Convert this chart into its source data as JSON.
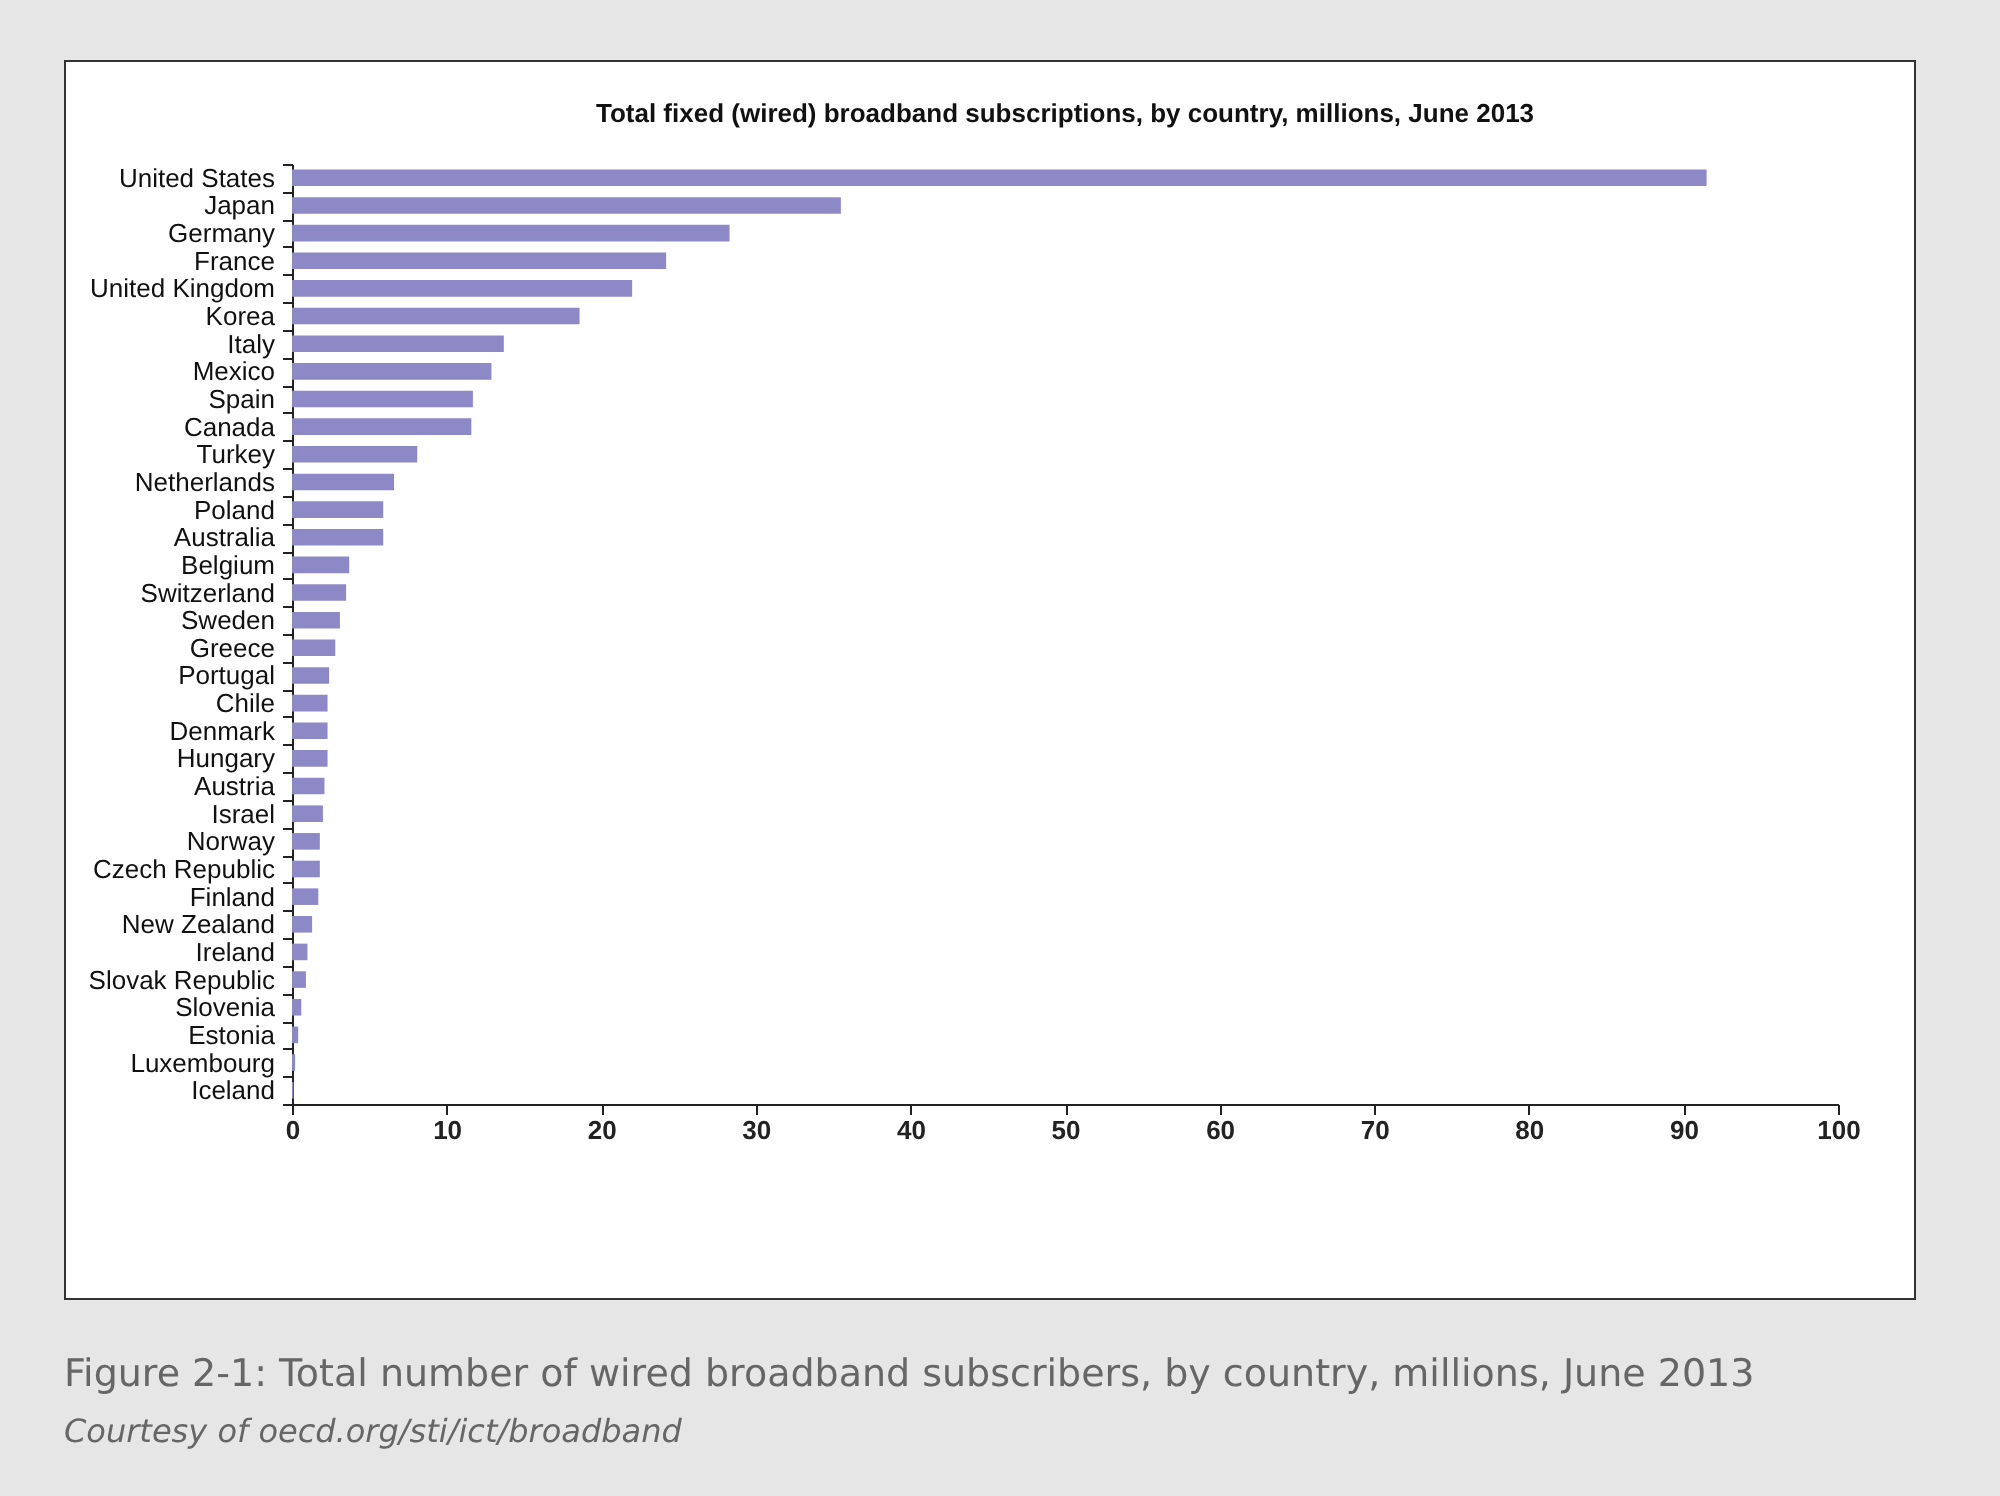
{
  "chart_data": {
    "type": "bar",
    "orientation": "horizontal",
    "title": "Total  fixed (wired) broadband subscriptions, by country, millions,  June 2013",
    "categories": [
      "United States",
      "Japan",
      "Germany",
      "France",
      "United Kingdom",
      "Korea",
      "Italy",
      "Mexico",
      "Spain",
      "Canada",
      "Turkey",
      "Netherlands",
      "Poland",
      "Australia",
      "Belgium",
      "Switzerland",
      "Sweden",
      "Greece",
      "Portugal",
      "Chile",
      "Denmark",
      "Hungary",
      "Austria",
      "Israel",
      "Norway",
      "Czech Republic",
      "Finland",
      "New Zealand",
      "Ireland",
      "Slovak Republic",
      "Slovenia",
      "Estonia",
      "Luxembourg",
      "Iceland"
    ],
    "values": [
      91.5,
      35.5,
      28.3,
      24.2,
      22.0,
      18.6,
      13.7,
      12.9,
      11.7,
      11.6,
      8.1,
      6.6,
      5.9,
      5.9,
      3.7,
      3.5,
      3.1,
      2.8,
      2.4,
      2.3,
      2.3,
      2.3,
      2.1,
      2.0,
      1.8,
      1.8,
      1.7,
      1.3,
      1.0,
      0.9,
      0.6,
      0.4,
      0.2,
      0.1
    ],
    "color": "#8c89c6",
    "xlim": [
      0,
      100
    ],
    "xticks": [
      0,
      10,
      20,
      30,
      40,
      50,
      60,
      70,
      80,
      90,
      100
    ],
    "grid": false,
    "annotations": [
      "Figure 2-1: Total number of wired broadband subscribers, by country, millions, June 2013",
      "Courtesy of oecd.org/sti/ict/broadband"
    ]
  }
}
